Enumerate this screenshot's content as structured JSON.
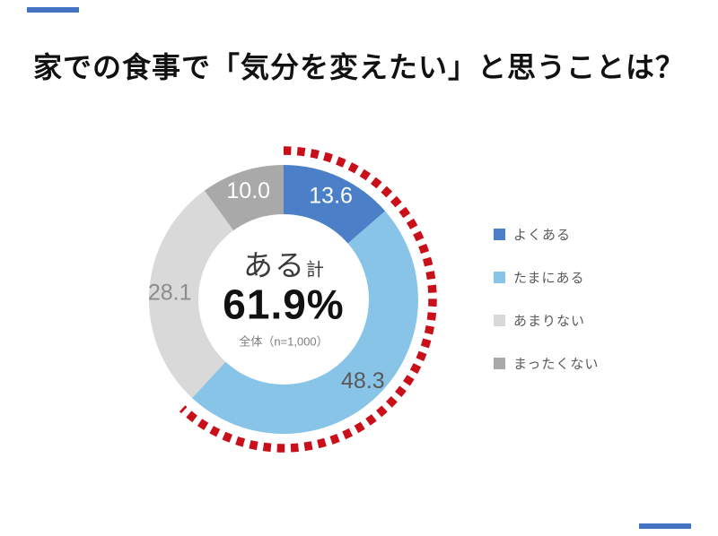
{
  "slide": {
    "title": "家での食事で「気分を変えたい」と思うことは？"
  },
  "accents": {
    "color": "#4472c4"
  },
  "chart_data": {
    "type": "donut",
    "title": "家での食事で「気分を変えたい」と思うことは？",
    "categories": [
      "よくある",
      "たまにある",
      "あまりない",
      "まったくない"
    ],
    "values": [
      13.6,
      48.3,
      28.1,
      10.0
    ],
    "colors": [
      "#4b80c8",
      "#87c4e7",
      "#d9d9d9",
      "#a9a9a9"
    ],
    "value_label_colors": [
      "#ffffff",
      "#595959",
      "#8c8c8c",
      "#ffffff"
    ],
    "start_angle_deg": 0,
    "direction": "clockwise",
    "legend_position": "right",
    "center_label": {
      "group": "ある",
      "suffix": "計",
      "value": "61.9%",
      "note": "全体（n=1,000）"
    },
    "highlight_arc": {
      "percent": 61.9,
      "color": "#c80f1a",
      "style": "red-dotted"
    }
  },
  "legend": {
    "items": [
      {
        "label": "よくある",
        "color": "#4b80c8"
      },
      {
        "label": "たまにある",
        "color": "#87c4e7"
      },
      {
        "label": "あまりない",
        "color": "#d9d9d9"
      },
      {
        "label": "まったくない",
        "color": "#a9a9a9"
      }
    ]
  }
}
